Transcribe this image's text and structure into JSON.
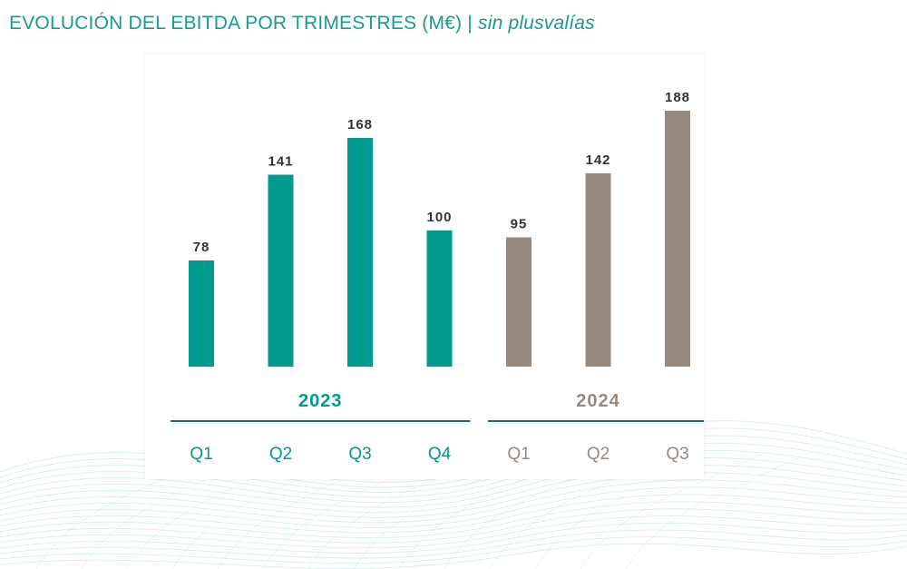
{
  "title": {
    "main": "EVOLUCIÓN DEL EBITDA POR TRIMESTRES (M€)",
    "separator": " | ",
    "subtitle": "sin plusvalías"
  },
  "colors": {
    "title": "#1a9a8e",
    "series_2023": "#009a8e",
    "series_2024": "#968980",
    "value_label": "#333333",
    "divider": "#1a6e74",
    "waves": "#cfe8e4"
  },
  "chart_data": {
    "type": "bar",
    "title": "EVOLUCIÓN DEL EBITDA POR TRIMESTRES (M€)",
    "subtitle": "sin plusvalías",
    "ylim": [
      0,
      200
    ],
    "grid": false,
    "groups": [
      {
        "name": "2023",
        "color": "#009a8e",
        "categories": [
          "Q1",
          "Q2",
          "Q3",
          "Q4"
        ],
        "values": [
          78,
          141,
          168,
          100
        ]
      },
      {
        "name": "2024",
        "color": "#968980",
        "categories": [
          "Q1",
          "Q2",
          "Q3"
        ],
        "values": [
          95,
          142,
          188
        ]
      }
    ]
  }
}
